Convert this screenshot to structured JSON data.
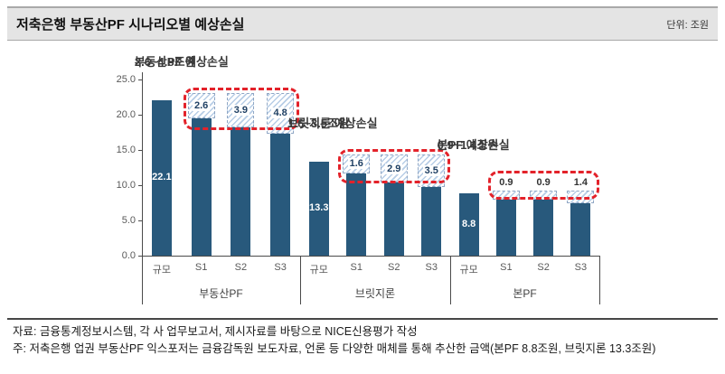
{
  "header": {
    "title": "저축은행 부동산PF 시나리오별 예상손실",
    "unit": "단위: 조원"
  },
  "chart_data": {
    "type": "bar",
    "title": "저축은행 부동산PF 시나리오별 예상손실",
    "unit": "조원",
    "ylim": [
      0,
      25
    ],
    "yticks": [
      25,
      20,
      15,
      10,
      5,
      0
    ],
    "ytick_labels": [
      "25.0",
      "20.0",
      "15.0",
      "10.0",
      "5.0",
      "0.0"
    ],
    "grid": false,
    "legend": "none",
    "bar_color": "#28597c",
    "hatch_color": "#b7cde6",
    "highlight_color": "#e3222a",
    "groups": [
      {
        "label": "부동산PF",
        "annotation_line1": "부동산PF 예상손실",
        "annotation_line2": "2.6~4.8조원",
        "bars": [
          {
            "category": "규모",
            "value": 22.1,
            "value_label": "22.1"
          },
          {
            "category": "S1",
            "value": 22.1,
            "loss": 2.6,
            "loss_label": "2.6"
          },
          {
            "category": "S2",
            "value": 22.1,
            "loss": 3.9,
            "loss_label": "3.9"
          },
          {
            "category": "S3",
            "value": 22.1,
            "loss": 4.8,
            "loss_label": "4.8"
          }
        ]
      },
      {
        "label": "브릿지론",
        "annotation_line1": "브릿지론 예상손실",
        "annotation_line2": "1.6~3.5조원",
        "bars": [
          {
            "category": "규모",
            "value": 13.3,
            "value_label": "13.3"
          },
          {
            "category": "S1",
            "value": 13.3,
            "loss": 1.6,
            "loss_label": "1.6"
          },
          {
            "category": "S2",
            "value": 13.3,
            "loss": 2.9,
            "loss_label": "2.9"
          },
          {
            "category": "S3",
            "value": 13.3,
            "loss": 3.5,
            "loss_label": "3.5"
          }
        ]
      },
      {
        "label": "본PF",
        "annotation_line1": "본PF 예상손실",
        "annotation_line2": "0.9~1.4조원",
        "bars": [
          {
            "category": "규모",
            "value": 8.8,
            "value_label": "8.8"
          },
          {
            "category": "S1",
            "value": 8.8,
            "loss": 0.9,
            "loss_label": "0.9"
          },
          {
            "category": "S2",
            "value": 8.8,
            "loss": 0.9,
            "loss_label": "0.9"
          },
          {
            "category": "S3",
            "value": 8.8,
            "loss": 1.4,
            "loss_label": "1.4"
          }
        ]
      }
    ]
  },
  "footer": {
    "source": "자료: 금융통계정보시스템, 각 사 업무보고서, 제시자료를 바탕으로 NICE신용평가 작성",
    "note": "주: 저축은행 업권 부동산PF 익스포저는 금융감독원 보도자료, 언론 등 다양한 매체를 통해 추산한 금액(본PF 8.8조원, 브릿지론 13.3조원)"
  }
}
